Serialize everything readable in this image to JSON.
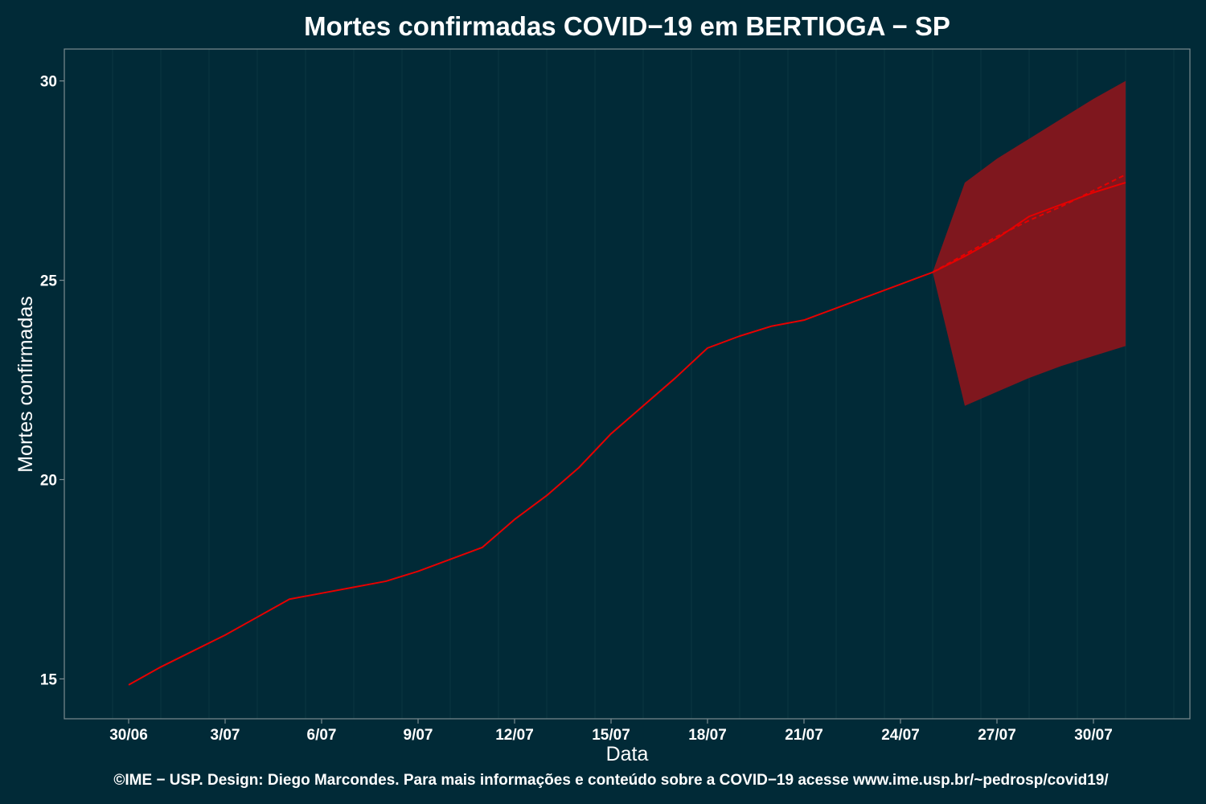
{
  "chart_data": {
    "type": "line",
    "title": "Mortes confirmadas COVID−19 em BERTIOGA − SP",
    "xlabel": "Data",
    "ylabel": "Mortes confirmadas",
    "footer": "©IME − USP. Design: Diego Marcondes. Para mais informações e conteúdo sobre a COVID−19 acesse www.ime.usp.br/~pedrosp/covid19/",
    "x_ticks": [
      "30/06",
      "3/07",
      "6/07",
      "9/07",
      "12/07",
      "15/07",
      "18/07",
      "21/07",
      "24/07",
      "27/07",
      "30/07"
    ],
    "y_ticks": [
      15,
      20,
      25,
      30
    ],
    "xlim": [
      "2020-06-28",
      "2020-08-02"
    ],
    "ylim": [
      14.0,
      30.8
    ],
    "grid": true,
    "series": [
      {
        "kind": "observed",
        "x": [
          "2020-06-30",
          "2020-07-01",
          "2020-07-02",
          "2020-07-03",
          "2020-07-04",
          "2020-07-05",
          "2020-07-06",
          "2020-07-07",
          "2020-07-08",
          "2020-07-09",
          "2020-07-10",
          "2020-07-11",
          "2020-07-12",
          "2020-07-13",
          "2020-07-14",
          "2020-07-15",
          "2020-07-16",
          "2020-07-17",
          "2020-07-18",
          "2020-07-19",
          "2020-07-20",
          "2020-07-21",
          "2020-07-22",
          "2020-07-23",
          "2020-07-24",
          "2020-07-25"
        ],
        "values": [
          14.85,
          15.3,
          15.7,
          16.1,
          16.55,
          17.0,
          17.15,
          17.3,
          17.45,
          17.7,
          18.0,
          18.3,
          19.0,
          19.6,
          20.3,
          21.15,
          21.85,
          22.55,
          23.3,
          23.6,
          23.85,
          24.0,
          24.3,
          24.6,
          24.9,
          25.2
        ]
      },
      {
        "kind": "forecast",
        "x": [
          "2020-07-25",
          "2020-07-26",
          "2020-07-27",
          "2020-07-28",
          "2020-07-29",
          "2020-07-30",
          "2020-07-31"
        ],
        "values": [
          25.2,
          25.6,
          26.05,
          26.6,
          26.9,
          27.2,
          27.45
        ]
      },
      {
        "kind": "forecast-dashed",
        "x": [
          "2020-07-25",
          "2020-07-26",
          "2020-07-27",
          "2020-07-28",
          "2020-07-29",
          "2020-07-30",
          "2020-07-31"
        ],
        "values": [
          25.2,
          25.65,
          26.1,
          26.5,
          26.85,
          27.25,
          27.65
        ]
      }
    ],
    "band": {
      "x": [
        "2020-07-25",
        "2020-07-26",
        "2020-07-27",
        "2020-07-28",
        "2020-07-29",
        "2020-07-30",
        "2020-07-31"
      ],
      "lower": [
        25.2,
        21.85,
        22.2,
        22.55,
        22.85,
        23.1,
        23.35
      ],
      "upper": [
        25.2,
        27.45,
        28.05,
        28.55,
        29.05,
        29.55,
        30.0
      ]
    },
    "colors": {
      "background": "#012a37",
      "line": "#e60000",
      "band": "#7f171e",
      "grid": "#13404b",
      "axis": "#7c8c90",
      "text": "#ffffff"
    }
  }
}
